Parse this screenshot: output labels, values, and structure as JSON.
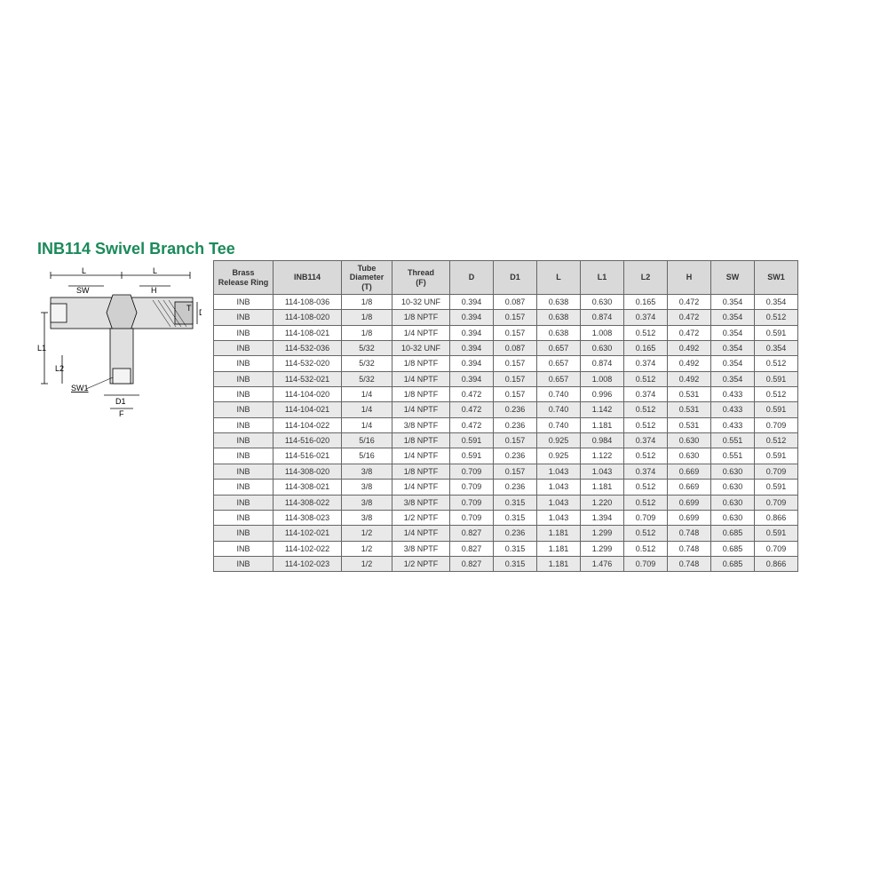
{
  "title": "INB114 Swivel Branch Tee",
  "title_color": "#1a8a5a",
  "diagram_labels": {
    "L_left": "L",
    "L_right": "L",
    "SW": "SW",
    "H": "H",
    "T": "T",
    "D": "D",
    "L1": "L1",
    "L2": "L2",
    "SW1": "SW1",
    "D1": "D1",
    "F": "F"
  },
  "table": {
    "header_bg": "#d9d9d9",
    "alt_row_bg": "#e9e9e9",
    "border_color": "#666666",
    "text_color": "#333333",
    "font_size_pt": 7,
    "columns": [
      {
        "key": "brass",
        "label": "Brass\nRelease Ring",
        "width": 58
      },
      {
        "key": "part",
        "label": "INB114",
        "width": 68
      },
      {
        "key": "tube",
        "label": "Tube\nDiameter\n(T)",
        "width": 48
      },
      {
        "key": "thread",
        "label": "Thread\n(F)",
        "width": 56
      },
      {
        "key": "D",
        "label": "D",
        "width": 40
      },
      {
        "key": "D1",
        "label": "D1",
        "width": 40
      },
      {
        "key": "L",
        "label": "L",
        "width": 40
      },
      {
        "key": "L1",
        "label": "L1",
        "width": 40
      },
      {
        "key": "L2",
        "label": "L2",
        "width": 40
      },
      {
        "key": "H",
        "label": "H",
        "width": 40
      },
      {
        "key": "SW",
        "label": "SW",
        "width": 40
      },
      {
        "key": "SW1",
        "label": "SW1",
        "width": 40
      }
    ],
    "rows": [
      [
        "INB",
        "114-108-036",
        "1/8",
        "10-32 UNF",
        "0.394",
        "0.087",
        "0.638",
        "0.630",
        "0.165",
        "0.472",
        "0.354",
        "0.354"
      ],
      [
        "INB",
        "114-108-020",
        "1/8",
        "1/8 NPTF",
        "0.394",
        "0.157",
        "0.638",
        "0.874",
        "0.374",
        "0.472",
        "0.354",
        "0.512"
      ],
      [
        "INB",
        "114-108-021",
        "1/8",
        "1/4 NPTF",
        "0.394",
        "0.157",
        "0.638",
        "1.008",
        "0.512",
        "0.472",
        "0.354",
        "0.591"
      ],
      [
        "INB",
        "114-532-036",
        "5/32",
        "10-32 UNF",
        "0.394",
        "0.087",
        "0.657",
        "0.630",
        "0.165",
        "0.492",
        "0.354",
        "0.354"
      ],
      [
        "INB",
        "114-532-020",
        "5/32",
        "1/8 NPTF",
        "0.394",
        "0.157",
        "0.657",
        "0.874",
        "0.374",
        "0.492",
        "0.354",
        "0.512"
      ],
      [
        "INB",
        "114-532-021",
        "5/32",
        "1/4 NPTF",
        "0.394",
        "0.157",
        "0.657",
        "1.008",
        "0.512",
        "0.492",
        "0.354",
        "0.591"
      ],
      [
        "INB",
        "114-104-020",
        "1/4",
        "1/8 NPTF",
        "0.472",
        "0.157",
        "0.740",
        "0.996",
        "0.374",
        "0.531",
        "0.433",
        "0.512"
      ],
      [
        "INB",
        "114-104-021",
        "1/4",
        "1/4 NPTF",
        "0.472",
        "0.236",
        "0.740",
        "1.142",
        "0.512",
        "0.531",
        "0.433",
        "0.591"
      ],
      [
        "INB",
        "114-104-022",
        "1/4",
        "3/8 NPTF",
        "0.472",
        "0.236",
        "0.740",
        "1.181",
        "0.512",
        "0.531",
        "0.433",
        "0.709"
      ],
      [
        "INB",
        "114-516-020",
        "5/16",
        "1/8 NPTF",
        "0.591",
        "0.157",
        "0.925",
        "0.984",
        "0.374",
        "0.630",
        "0.551",
        "0.512"
      ],
      [
        "INB",
        "114-516-021",
        "5/16",
        "1/4 NPTF",
        "0.591",
        "0.236",
        "0.925",
        "1.122",
        "0.512",
        "0.630",
        "0.551",
        "0.591"
      ],
      [
        "INB",
        "114-308-020",
        "3/8",
        "1/8 NPTF",
        "0.709",
        "0.157",
        "1.043",
        "1.043",
        "0.374",
        "0.669",
        "0.630",
        "0.709"
      ],
      [
        "INB",
        "114-308-021",
        "3/8",
        "1/4 NPTF",
        "0.709",
        "0.236",
        "1.043",
        "1.181",
        "0.512",
        "0.669",
        "0.630",
        "0.591"
      ],
      [
        "INB",
        "114-308-022",
        "3/8",
        "3/8 NPTF",
        "0.709",
        "0.315",
        "1.043",
        "1.220",
        "0.512",
        "0.699",
        "0.630",
        "0.709"
      ],
      [
        "INB",
        "114-308-023",
        "3/8",
        "1/2 NPTF",
        "0.709",
        "0.315",
        "1.043",
        "1.394",
        "0.709",
        "0.699",
        "0.630",
        "0.866"
      ],
      [
        "INB",
        "114-102-021",
        "1/2",
        "1/4 NPTF",
        "0.827",
        "0.236",
        "1.181",
        "1.299",
        "0.512",
        "0.748",
        "0.685",
        "0.591"
      ],
      [
        "INB",
        "114-102-022",
        "1/2",
        "3/8 NPTF",
        "0.827",
        "0.315",
        "1.181",
        "1.299",
        "0.512",
        "0.748",
        "0.685",
        "0.709"
      ],
      [
        "INB",
        "114-102-023",
        "1/2",
        "1/2 NPTF",
        "0.827",
        "0.315",
        "1.181",
        "1.476",
        "0.709",
        "0.748",
        "0.685",
        "0.866"
      ]
    ]
  }
}
